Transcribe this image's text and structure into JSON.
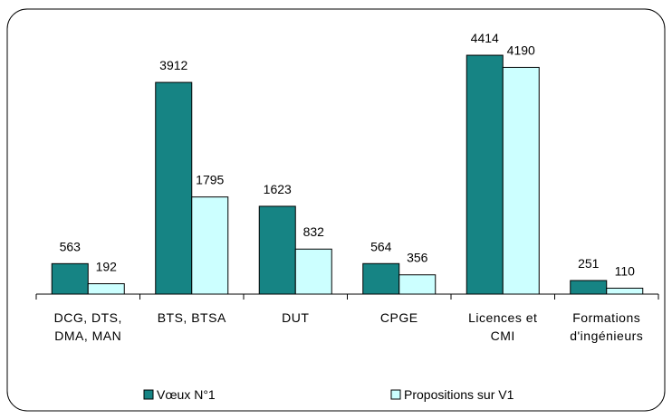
{
  "chart_data": {
    "type": "bar",
    "categories": [
      "DCG, DTS, DMA, MAN",
      "BTS, BTSA",
      "DUT",
      "CPGE",
      "Licences et CMI",
      "Formations d'ingénieurs"
    ],
    "series": [
      {
        "name": "Vœux N°1",
        "color": "#168484",
        "values": [
          563,
          3912,
          1623,
          564,
          4414,
          251
        ]
      },
      {
        "name": "Propositions sur V1",
        "color": "#ccffff",
        "values": [
          192,
          1795,
          832,
          356,
          4190,
          110
        ]
      }
    ],
    "ylim": [
      0,
      5000
    ],
    "legend": "bottom"
  }
}
